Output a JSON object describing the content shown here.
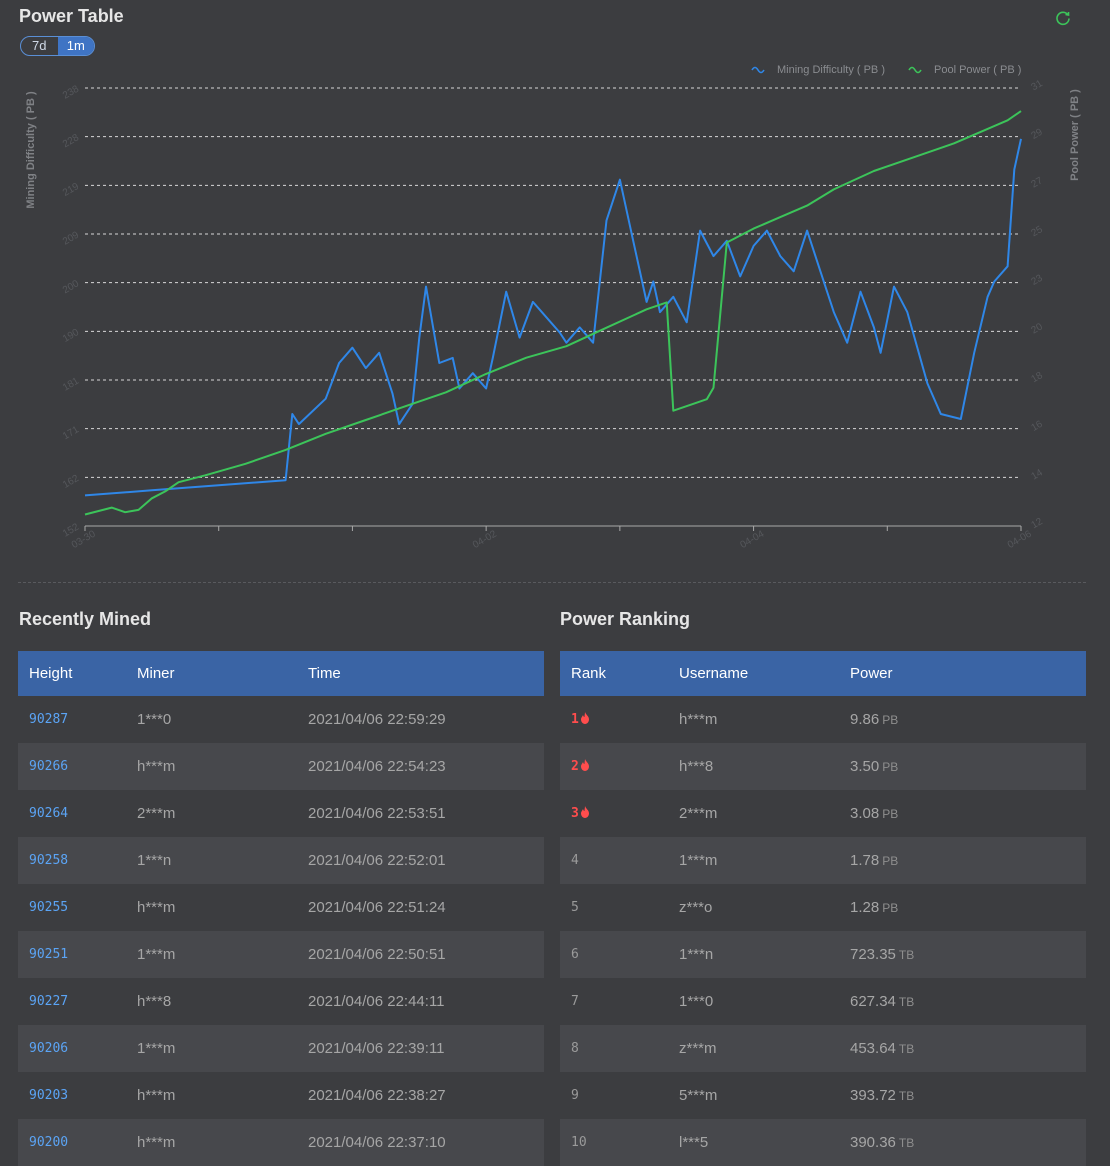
{
  "chart_title": "Power Table",
  "toggle": {
    "options": [
      "7d",
      "1m"
    ],
    "selected": "1m"
  },
  "icons": {
    "refresh": "refresh-icon",
    "flame": "flame-icon"
  },
  "colors": {
    "difficulty": "#2f87e8",
    "pool": "#3cc45a",
    "header": "#3a64a5",
    "accent": "#5ba4f5",
    "top_rank": "#ff4d4d"
  },
  "chart_data": {
    "type": "line",
    "title": "Power Table",
    "legend": [
      "Mining Difficulty ( PB )",
      "Pool Power ( PB )"
    ],
    "legend_position": "top-right",
    "ylabel_left": "Mining Difficulty ( PB )",
    "ylabel_right": "Pool Power ( PB )",
    "y_left_ticks": [
      "152",
      "162",
      "171",
      "181",
      "190",
      "200",
      "209",
      "219",
      "228",
      "238"
    ],
    "y_right_ticks": [
      "12",
      "14",
      "16",
      "18",
      "20",
      "23",
      "25",
      "27",
      "29",
      "31"
    ],
    "ylim_left": [
      152,
      238
    ],
    "ylim_right": [
      12,
      31
    ],
    "x_ticks": [
      "03-30",
      "04-02",
      "04-04",
      "04-06"
    ],
    "x_tick_days": [
      0,
      3,
      5,
      7
    ],
    "xlim": [
      0,
      7
    ],
    "grid": true,
    "series": [
      {
        "name": "Mining Difficulty ( PB )",
        "axis": "left",
        "x": [
          0,
          0.5,
          1.0,
          1.5,
          1.55,
          1.6,
          1.8,
          1.9,
          2.0,
          2.1,
          2.2,
          2.3,
          2.35,
          2.45,
          2.5,
          2.55,
          2.65,
          2.75,
          2.8,
          2.9,
          3.0,
          3.05,
          3.15,
          3.25,
          3.35,
          3.45,
          3.55,
          3.6,
          3.7,
          3.8,
          3.9,
          4.0,
          4.1,
          4.2,
          4.25,
          4.3,
          4.4,
          4.5,
          4.6,
          4.7,
          4.8,
          4.9,
          5.0,
          5.1,
          5.2,
          5.3,
          5.4,
          5.5,
          5.6,
          5.7,
          5.8,
          5.9,
          5.95,
          6.05,
          6.15,
          6.3,
          6.4,
          6.55,
          6.65,
          6.75,
          6.8,
          6.9,
          6.95,
          7.0
        ],
        "values": [
          158,
          159,
          160,
          161,
          174,
          172,
          177,
          184,
          187,
          183,
          186,
          178,
          172,
          176,
          189,
          199,
          184,
          185,
          179,
          182,
          179,
          185,
          198,
          189,
          196,
          193,
          190,
          188,
          191,
          188,
          212,
          220,
          208,
          196,
          200,
          194,
          197,
          192,
          210,
          205,
          208,
          201,
          207,
          210,
          205,
          202,
          210,
          202,
          194,
          188,
          198,
          191,
          186,
          199,
          194,
          180,
          174,
          173,
          186,
          197,
          200,
          203,
          222,
          228
        ]
      },
      {
        "name": "Pool Power ( PB )",
        "axis": "right",
        "x": [
          0,
          0.2,
          0.3,
          0.4,
          0.5,
          0.6,
          0.7,
          0.9,
          1.2,
          1.5,
          1.8,
          2.1,
          2.4,
          2.7,
          3.0,
          3.3,
          3.6,
          3.9,
          4.2,
          4.35,
          4.4,
          4.55,
          4.65,
          4.7,
          4.8,
          5.0,
          5.2,
          5.4,
          5.6,
          5.9,
          6.2,
          6.4,
          6.5,
          6.7,
          6.9,
          7.0
        ],
        "values": [
          12.5,
          12.8,
          12.6,
          12.7,
          13.2,
          13.5,
          13.9,
          14.2,
          14.7,
          15.3,
          16.0,
          16.6,
          17.2,
          17.8,
          18.6,
          19.3,
          19.8,
          20.6,
          21.4,
          21.7,
          17.0,
          17.3,
          17.5,
          18.0,
          24.3,
          24.9,
          25.4,
          25.9,
          26.6,
          27.4,
          28.0,
          28.4,
          28.6,
          29.1,
          29.6,
          30.0
        ]
      }
    ]
  },
  "recently_mined": {
    "title": "Recently Mined",
    "columns": [
      "Height",
      "Miner",
      "Time"
    ],
    "rows": [
      {
        "height": "90287",
        "miner": "1***0",
        "time": "2021/04/06 22:59:29"
      },
      {
        "height": "90266",
        "miner": "h***m",
        "time": "2021/04/06 22:54:23"
      },
      {
        "height": "90264",
        "miner": "2***m",
        "time": "2021/04/06 22:53:51"
      },
      {
        "height": "90258",
        "miner": "1***n",
        "time": "2021/04/06 22:52:01"
      },
      {
        "height": "90255",
        "miner": "h***m",
        "time": "2021/04/06 22:51:24"
      },
      {
        "height": "90251",
        "miner": "1***m",
        "time": "2021/04/06 22:50:51"
      },
      {
        "height": "90227",
        "miner": "h***8",
        "time": "2021/04/06 22:44:11"
      },
      {
        "height": "90206",
        "miner": "1***m",
        "time": "2021/04/06 22:39:11"
      },
      {
        "height": "90203",
        "miner": "h***m",
        "time": "2021/04/06 22:38:27"
      },
      {
        "height": "90200",
        "miner": "h***m",
        "time": "2021/04/06 22:37:10"
      }
    ]
  },
  "power_ranking": {
    "title": "Power Ranking",
    "columns": [
      "Rank",
      "Username",
      "Power"
    ],
    "rows": [
      {
        "rank": "1",
        "username": "h***m",
        "power": "9.86",
        "unit": "PB",
        "top": true
      },
      {
        "rank": "2",
        "username": "h***8",
        "power": "3.50",
        "unit": "PB",
        "top": true
      },
      {
        "rank": "3",
        "username": "2***m",
        "power": "3.08",
        "unit": "PB",
        "top": true
      },
      {
        "rank": "4",
        "username": "1***m",
        "power": "1.78",
        "unit": "PB",
        "top": false
      },
      {
        "rank": "5",
        "username": "z***o",
        "power": "1.28",
        "unit": "PB",
        "top": false
      },
      {
        "rank": "6",
        "username": "1***n",
        "power": "723.35",
        "unit": "TB",
        "top": false
      },
      {
        "rank": "7",
        "username": "1***0",
        "power": "627.34",
        "unit": "TB",
        "top": false
      },
      {
        "rank": "8",
        "username": "z***m",
        "power": "453.64",
        "unit": "TB",
        "top": false
      },
      {
        "rank": "9",
        "username": "5***m",
        "power": "393.72",
        "unit": "TB",
        "top": false
      },
      {
        "rank": "10",
        "username": "l***5",
        "power": "390.36",
        "unit": "TB",
        "top": false
      }
    ]
  }
}
